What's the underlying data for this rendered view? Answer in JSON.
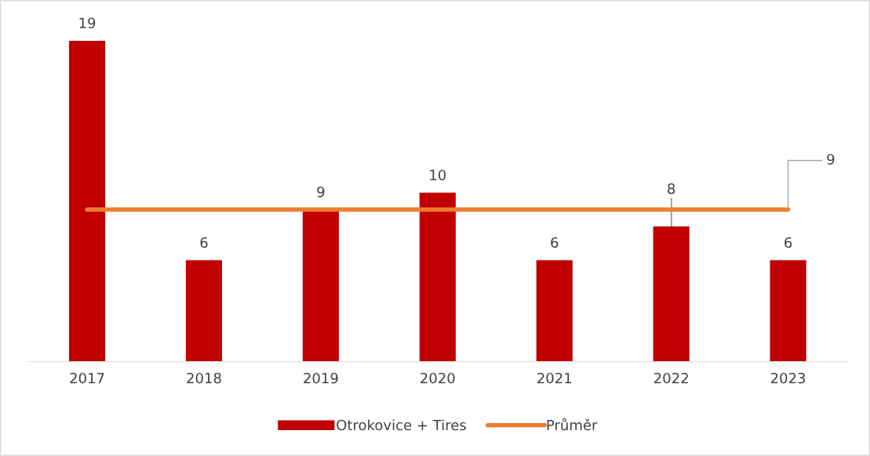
{
  "chart_data": {
    "type": "bar",
    "categories": [
      "2017",
      "2018",
      "2019",
      "2020",
      "2021",
      "2022",
      "2023"
    ],
    "series": [
      {
        "name": "Otrokovice + Tires",
        "color": "#c00000",
        "values": [
          19,
          6,
          9,
          10,
          6,
          8,
          6
        ],
        "value_labels": [
          "19",
          "6",
          "9",
          "10",
          "6",
          "8",
          "6"
        ]
      },
      {
        "name": "Průměr",
        "type": "line",
        "color": "#ed7d31",
        "values": [
          9,
          9,
          9,
          9,
          9,
          9,
          9
        ],
        "value_labels": [
          null,
          null,
          null,
          null,
          null,
          null,
          "9"
        ]
      }
    ],
    "grid": false,
    "legend": "bottom",
    "marker": "none",
    "line_style": "solid",
    "tick_labels": "x"
  }
}
